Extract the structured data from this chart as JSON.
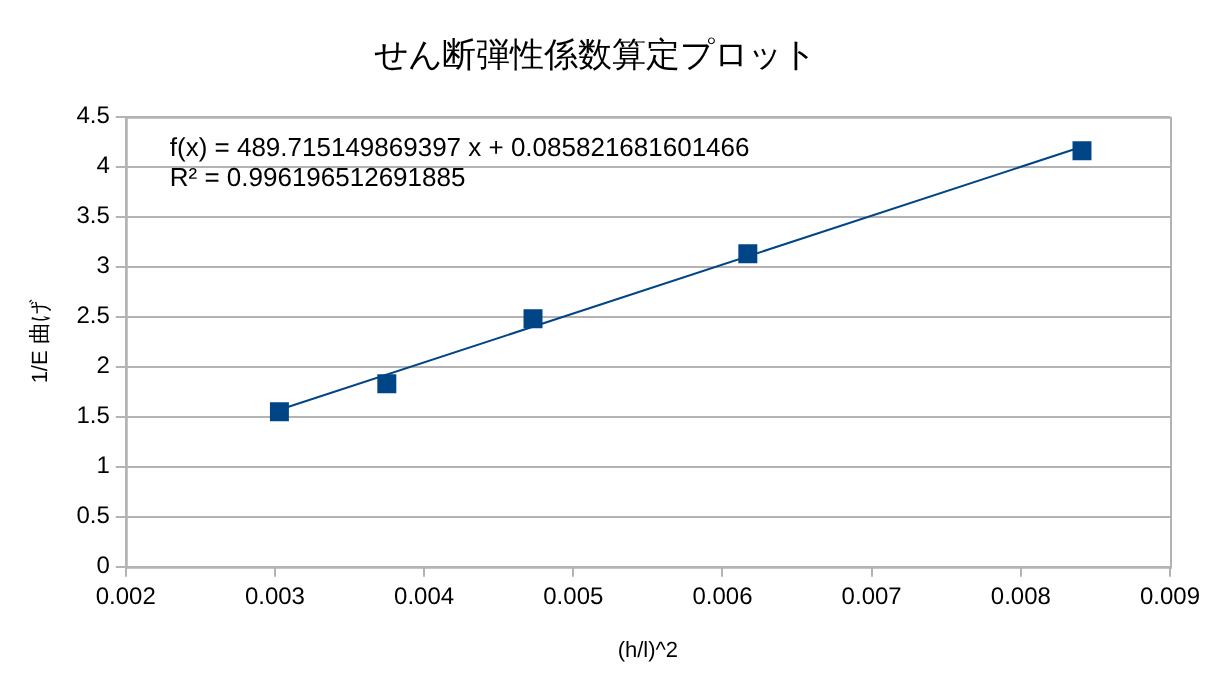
{
  "chart_data": {
    "type": "scatter",
    "title": "せん断弾性係数算定プロット",
    "xlabel": "(h/l)^2",
    "ylabel": "1/E 曲げ",
    "series": [
      {
        "type": "scatter",
        "color": "#004586",
        "x": [
          0.00303,
          0.00375,
          0.00473,
          0.00617,
          0.00841
        ],
        "values": [
          1.55,
          1.83,
          2.48,
          3.13,
          4.16
        ],
        "marker": "square"
      },
      {
        "type": "line",
        "color": "#004586",
        "x": [
          0.00303,
          0.00841
        ],
        "values": [
          1.57,
          4.2
        ],
        "marker": "none"
      }
    ],
    "xlim": [
      0.002,
      0.009
    ],
    "xticks": [
      0.002,
      0.003,
      0.004,
      0.005,
      0.006,
      0.007,
      0.008,
      0.009
    ],
    "ylim": [
      0,
      4.5
    ],
    "yticks": [
      0,
      0.5,
      1,
      1.5,
      2,
      2.5,
      3,
      3.5,
      4,
      4.5
    ],
    "grid": "y",
    "legend": false,
    "annotations": [
      "f(x) = 489.715149869397 x + 0.085821681601466",
      "R² = 0.996196512691885"
    ]
  }
}
